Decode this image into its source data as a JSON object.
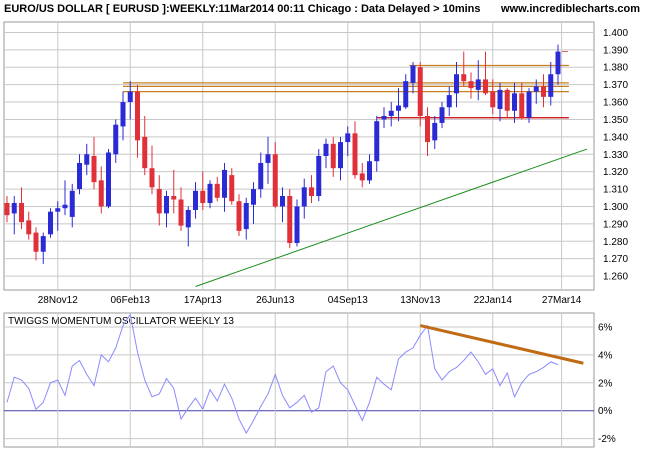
{
  "header": {
    "title": "EURO/US DOLLAR [ EURUSD ]:WEEKLY:11Mar2014 00:11 Chicago : Data Delayed > 10mins",
    "site": "www.incrediblecharts.com"
  },
  "osc_title": "TWIGGS MOMENTUM OSCILLATOR WEEKLY 13",
  "colors": {
    "up": "#2b2bd6",
    "down": "#e0303a",
    "resistance": "#c87f1e",
    "support": "#cc0000",
    "trendline": "#1a8c1a",
    "oscillator": "#8b8bff",
    "osc_trend": "#c06a14",
    "grid": "#c8c8c8",
    "zero": "#4040a0"
  },
  "chart_data": [
    {
      "type": "candlestick",
      "title": "EURO/US DOLLAR [ EURUSD ]:WEEKLY:11Mar2014 00:11 Chicago : Data Delayed > 10mins",
      "ylim": [
        1.252,
        1.406
      ],
      "y_ticks": [
        "1.260",
        "1.270",
        "1.280",
        "1.290",
        "1.300",
        "1.310",
        "1.320",
        "1.330",
        "1.340",
        "1.350",
        "1.360",
        "1.370",
        "1.380",
        "1.390",
        "1.400"
      ],
      "x_tick_labels": [
        {
          "label": "28Nov12",
          "index": 7
        },
        {
          "label": "06Feb13",
          "index": 17
        },
        {
          "label": "17Apr13",
          "index": 27
        },
        {
          "label": "26Jun13",
          "index": 37
        },
        {
          "label": "04Sep13",
          "index": 47
        },
        {
          "label": "13Nov13",
          "index": 57
        },
        {
          "label": "22Jan14",
          "index": 67
        },
        {
          "label": "27Mar14",
          "index": 76.5
        }
      ],
      "candles": [
        {
          "o": 1.302,
          "h": 1.306,
          "l": 1.291,
          "c": 1.295
        },
        {
          "o": 1.296,
          "h": 1.306,
          "l": 1.284,
          "c": 1.302
        },
        {
          "o": 1.302,
          "h": 1.311,
          "l": 1.287,
          "c": 1.291
        },
        {
          "o": 1.292,
          "h": 1.297,
          "l": 1.281,
          "c": 1.284
        },
        {
          "o": 1.285,
          "h": 1.288,
          "l": 1.269,
          "c": 1.274
        },
        {
          "o": 1.274,
          "h": 1.285,
          "l": 1.267,
          "c": 1.283
        },
        {
          "o": 1.284,
          "h": 1.299,
          "l": 1.282,
          "c": 1.297
        },
        {
          "o": 1.297,
          "h": 1.303,
          "l": 1.286,
          "c": 1.299
        },
        {
          "o": 1.299,
          "h": 1.315,
          "l": 1.295,
          "c": 1.301
        },
        {
          "o": 1.294,
          "h": 1.313,
          "l": 1.288,
          "c": 1.309
        },
        {
          "o": 1.31,
          "h": 1.33,
          "l": 1.307,
          "c": 1.325
        },
        {
          "o": 1.324,
          "h": 1.336,
          "l": 1.318,
          "c": 1.33
        },
        {
          "o": 1.329,
          "h": 1.34,
          "l": 1.31,
          "c": 1.314
        },
        {
          "o": 1.315,
          "h": 1.323,
          "l": 1.296,
          "c": 1.3
        },
        {
          "o": 1.3,
          "h": 1.333,
          "l": 1.299,
          "c": 1.331
        },
        {
          "o": 1.33,
          "h": 1.35,
          "l": 1.325,
          "c": 1.347
        },
        {
          "o": 1.346,
          "h": 1.366,
          "l": 1.338,
          "c": 1.36
        },
        {
          "o": 1.36,
          "h": 1.372,
          "l": 1.35,
          "c": 1.366
        },
        {
          "o": 1.366,
          "h": 1.37,
          "l": 1.328,
          "c": 1.338
        },
        {
          "o": 1.34,
          "h": 1.352,
          "l": 1.318,
          "c": 1.322
        },
        {
          "o": 1.322,
          "h": 1.335,
          "l": 1.307,
          "c": 1.311
        },
        {
          "o": 1.31,
          "h": 1.318,
          "l": 1.289,
          "c": 1.296
        },
        {
          "o": 1.296,
          "h": 1.309,
          "l": 1.288,
          "c": 1.306
        },
        {
          "o": 1.306,
          "h": 1.321,
          "l": 1.296,
          "c": 1.304
        },
        {
          "o": 1.304,
          "h": 1.311,
          "l": 1.286,
          "c": 1.289
        },
        {
          "o": 1.288,
          "h": 1.3,
          "l": 1.277,
          "c": 1.298
        },
        {
          "o": 1.298,
          "h": 1.314,
          "l": 1.293,
          "c": 1.309
        },
        {
          "o": 1.309,
          "h": 1.32,
          "l": 1.298,
          "c": 1.302
        },
        {
          "o": 1.302,
          "h": 1.315,
          "l": 1.299,
          "c": 1.313
        },
        {
          "o": 1.313,
          "h": 1.317,
          "l": 1.303,
          "c": 1.305
        },
        {
          "o": 1.305,
          "h": 1.325,
          "l": 1.297,
          "c": 1.321
        },
        {
          "o": 1.318,
          "h": 1.322,
          "l": 1.301,
          "c": 1.303
        },
        {
          "o": 1.303,
          "h": 1.307,
          "l": 1.283,
          "c": 1.286
        },
        {
          "o": 1.287,
          "h": 1.305,
          "l": 1.281,
          "c": 1.302
        },
        {
          "o": 1.301,
          "h": 1.314,
          "l": 1.29,
          "c": 1.31
        },
        {
          "o": 1.31,
          "h": 1.331,
          "l": 1.305,
          "c": 1.325
        },
        {
          "o": 1.325,
          "h": 1.34,
          "l": 1.313,
          "c": 1.33
        },
        {
          "o": 1.33,
          "h": 1.337,
          "l": 1.299,
          "c": 1.3
        },
        {
          "o": 1.3,
          "h": 1.311,
          "l": 1.291,
          "c": 1.306
        },
        {
          "o": 1.306,
          "h": 1.31,
          "l": 1.276,
          "c": 1.279
        },
        {
          "o": 1.279,
          "h": 1.304,
          "l": 1.277,
          "c": 1.3
        },
        {
          "o": 1.3,
          "h": 1.316,
          "l": 1.293,
          "c": 1.311
        },
        {
          "o": 1.311,
          "h": 1.318,
          "l": 1.302,
          "c": 1.306
        },
        {
          "o": 1.306,
          "h": 1.333,
          "l": 1.303,
          "c": 1.329
        },
        {
          "o": 1.329,
          "h": 1.339,
          "l": 1.322,
          "c": 1.336
        },
        {
          "o": 1.336,
          "h": 1.34,
          "l": 1.317,
          "c": 1.322
        },
        {
          "o": 1.322,
          "h": 1.34,
          "l": 1.315,
          "c": 1.337
        },
        {
          "o": 1.337,
          "h": 1.346,
          "l": 1.329,
          "c": 1.342
        },
        {
          "o": 1.342,
          "h": 1.349,
          "l": 1.316,
          "c": 1.318
        },
        {
          "o": 1.319,
          "h": 1.325,
          "l": 1.311,
          "c": 1.315
        },
        {
          "o": 1.315,
          "h": 1.33,
          "l": 1.313,
          "c": 1.326
        },
        {
          "o": 1.326,
          "h": 1.352,
          "l": 1.32,
          "c": 1.349
        },
        {
          "o": 1.35,
          "h": 1.357,
          "l": 1.345,
          "c": 1.352
        },
        {
          "o": 1.352,
          "h": 1.36,
          "l": 1.346,
          "c": 1.355
        },
        {
          "o": 1.355,
          "h": 1.368,
          "l": 1.349,
          "c": 1.358
        },
        {
          "o": 1.357,
          "h": 1.376,
          "l": 1.356,
          "c": 1.372
        },
        {
          "o": 1.371,
          "h": 1.383,
          "l": 1.365,
          "c": 1.381
        },
        {
          "o": 1.38,
          "h": 1.383,
          "l": 1.346,
          "c": 1.352
        },
        {
          "o": 1.352,
          "h": 1.357,
          "l": 1.329,
          "c": 1.337
        },
        {
          "o": 1.338,
          "h": 1.352,
          "l": 1.333,
          "c": 1.348
        },
        {
          "o": 1.348,
          "h": 1.36,
          "l": 1.345,
          "c": 1.357
        },
        {
          "o": 1.357,
          "h": 1.369,
          "l": 1.352,
          "c": 1.364
        },
        {
          "o": 1.365,
          "h": 1.383,
          "l": 1.357,
          "c": 1.376
        },
        {
          "o": 1.376,
          "h": 1.389,
          "l": 1.369,
          "c": 1.372
        },
        {
          "o": 1.372,
          "h": 1.377,
          "l": 1.362,
          "c": 1.368
        },
        {
          "o": 1.367,
          "h": 1.384,
          "l": 1.361,
          "c": 1.373
        },
        {
          "o": 1.373,
          "h": 1.389,
          "l": 1.364,
          "c": 1.365
        },
        {
          "o": 1.366,
          "h": 1.373,
          "l": 1.353,
          "c": 1.357
        },
        {
          "o": 1.356,
          "h": 1.371,
          "l": 1.349,
          "c": 1.367
        },
        {
          "o": 1.367,
          "h": 1.368,
          "l": 1.351,
          "c": 1.355
        },
        {
          "o": 1.355,
          "h": 1.371,
          "l": 1.348,
          "c": 1.365
        },
        {
          "o": 1.365,
          "h": 1.371,
          "l": 1.35,
          "c": 1.351
        },
        {
          "o": 1.351,
          "h": 1.368,
          "l": 1.348,
          "c": 1.366
        },
        {
          "o": 1.366,
          "h": 1.373,
          "l": 1.359,
          "c": 1.369
        },
        {
          "o": 1.369,
          "h": 1.376,
          "l": 1.357,
          "c": 1.363
        },
        {
          "o": 1.363,
          "h": 1.383,
          "l": 1.358,
          "c": 1.376
        },
        {
          "o": 1.376,
          "h": 1.393,
          "l": 1.37,
          "c": 1.389
        }
      ],
      "resistance_lines": [
        {
          "y": 1.381,
          "x_start_index": 55.5,
          "x_end_index": 77.5
        },
        {
          "y": 1.371,
          "x_start_index": 16,
          "x_end_index": 77.5
        },
        {
          "y": 1.369,
          "x_start_index": 16,
          "x_end_index": 77.5
        },
        {
          "y": 1.366,
          "x_start_index": 16,
          "x_end_index": 77.5
        }
      ],
      "support_lines": [
        {
          "y": 1.351,
          "x_start_index": 51,
          "x_end_index": 77.5
        }
      ],
      "trendlines": [
        {
          "x1_index": 26,
          "y1": 1.254,
          "x2_index": 80,
          "y2": 1.333
        }
      ]
    },
    {
      "type": "line",
      "title": "TWIGGS MOMENTUM OSCILLATOR WEEKLY 13",
      "ylim": [
        -2.6,
        7.0
      ],
      "y_ticks": [
        "6%",
        "4%",
        "2%",
        "0%",
        "-2%"
      ],
      "values": [
        0.6,
        2.4,
        2.2,
        1.6,
        0.1,
        0.6,
        2.0,
        2.2,
        1.1,
        3.2,
        3.6,
        2.6,
        1.8,
        4.0,
        3.5,
        4.5,
        6.1,
        6.9,
        4.2,
        2.2,
        1.0,
        1.2,
        2.3,
        1.6,
        -0.6,
        0.2,
        0.9,
        0.1,
        1.5,
        0.7,
        1.9,
        0.9,
        -0.6,
        -1.6,
        -0.7,
        0.3,
        1.2,
        2.6,
        1.1,
        0.2,
        0.6,
        1.1,
        -0.1,
        0.2,
        2.8,
        3.2,
        2.0,
        1.5,
        0.4,
        -0.7,
        0.6,
        2.4,
        1.9,
        1.5,
        3.7,
        4.2,
        4.5,
        5.4,
        6.1,
        3.0,
        2.2,
        2.8,
        3.1,
        3.6,
        4.2,
        3.5,
        2.6,
        3.0,
        1.8,
        2.7,
        1.0,
        2.0,
        2.6,
        2.8,
        3.1,
        3.5,
        3.3
      ],
      "trendlines": [
        {
          "x1_index": 57,
          "y1": 6.1,
          "x2_index": 79.5,
          "y2": 3.4
        }
      ]
    }
  ]
}
